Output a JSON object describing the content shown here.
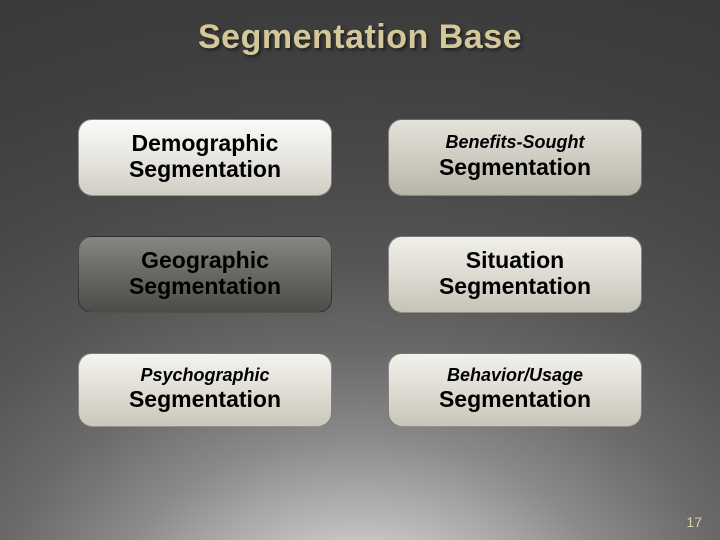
{
  "title": "Segmentation Base",
  "boxes": {
    "b1": {
      "line1": "Demographic",
      "line2": "Segmentation"
    },
    "b2": {
      "line1": "Benefits-Sought",
      "line2": "Segmentation"
    },
    "b3": {
      "line1": "Geographic",
      "line2": "Segmentation"
    },
    "b4": {
      "line1": "Situation",
      "line2": "Segmentation"
    },
    "b5": {
      "line1": "Psychographic",
      "line2": "Segmentation"
    },
    "b6": {
      "line1": "Behavior/Usage",
      "line2": "Segmentation"
    }
  },
  "page_number": "17",
  "colors": {
    "title_color": "#d4c89a",
    "page_num_color": "#d8ceac",
    "text_color": "#000000"
  }
}
